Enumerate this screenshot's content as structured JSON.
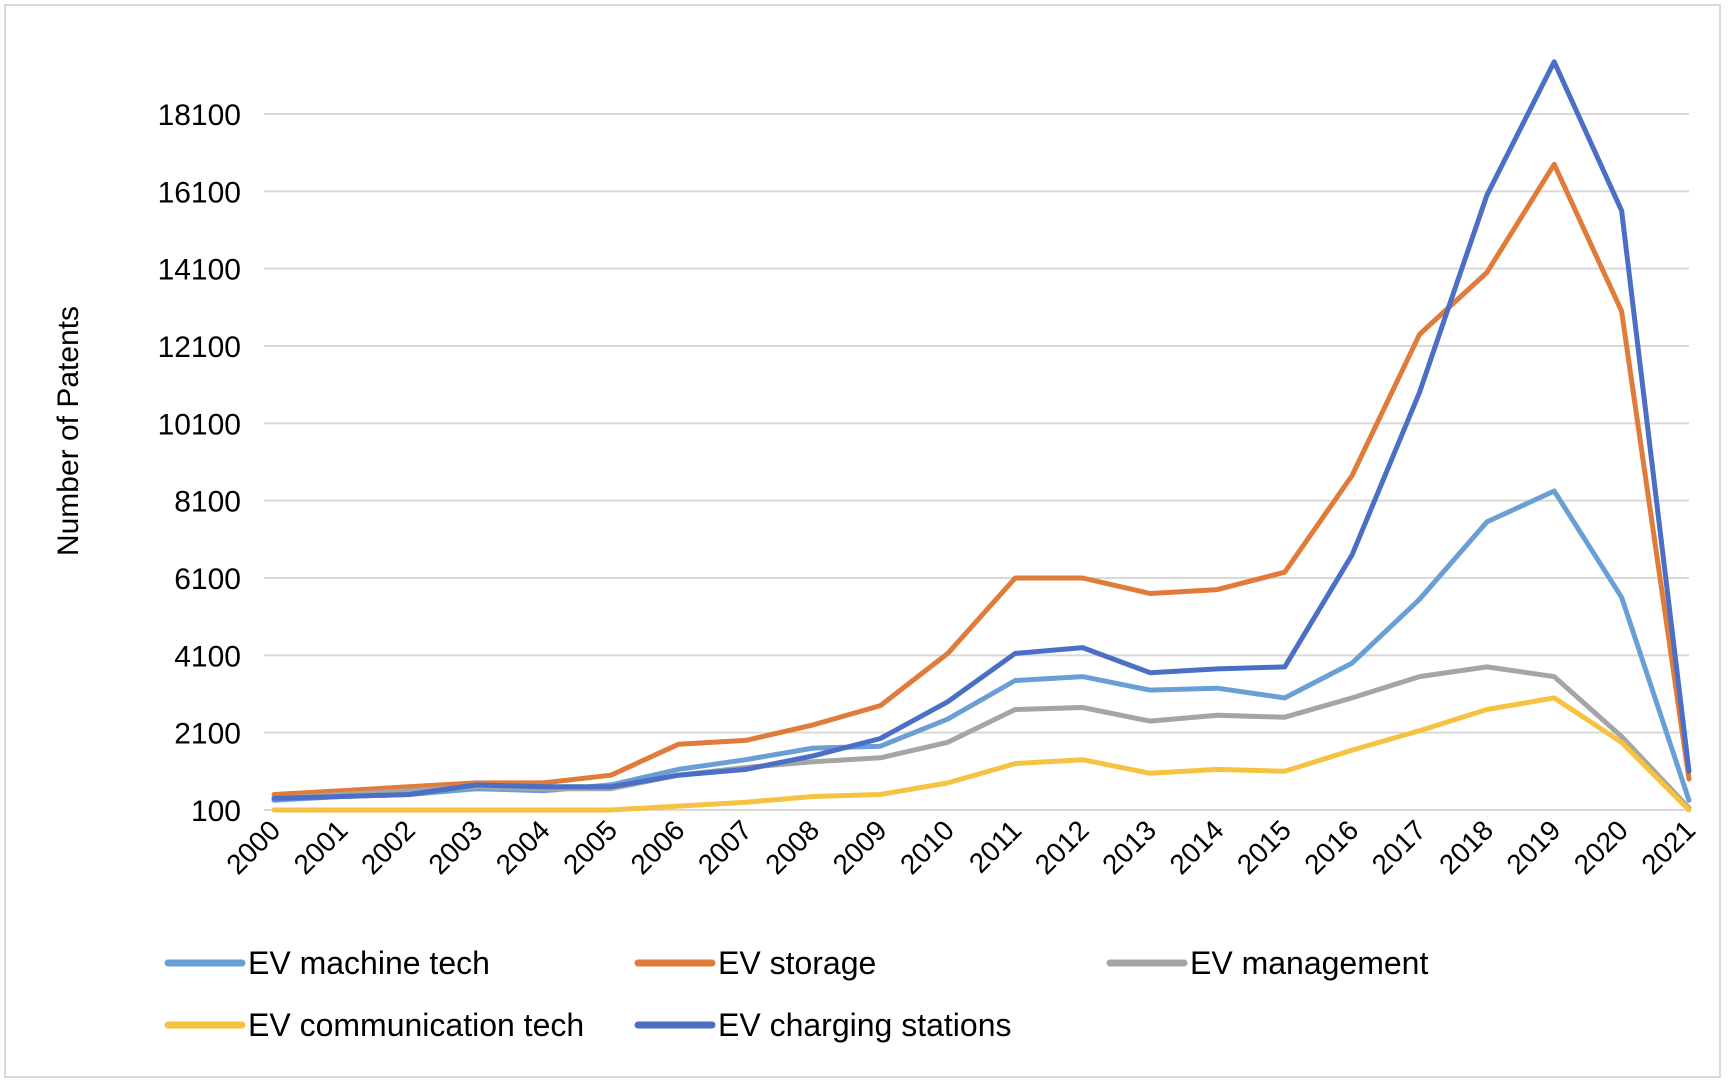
{
  "chart_data": {
    "type": "line",
    "title": "",
    "xlabel": "",
    "ylabel": "Number of Patents",
    "x": [
      "2000",
      "2001",
      "2002",
      "2003",
      "2004",
      "2005",
      "2006",
      "2007",
      "2008",
      "2009",
      "2010",
      "2011",
      "2012",
      "2013",
      "2014",
      "2015",
      "2016",
      "2017",
      "2018",
      "2019",
      "2020",
      "2021"
    ],
    "yticks": [
      "100",
      "2100",
      "4100",
      "6100",
      "8100",
      "10100",
      "12100",
      "14100",
      "16100",
      "18100"
    ],
    "ylim": [
      100,
      19600
    ],
    "grid": true,
    "legend_position": "bottom",
    "series": [
      {
        "name": "EV machine tech",
        "color": "#6a9fd6",
        "values": [
          350,
          450,
          500,
          650,
          600,
          750,
          1150,
          1400,
          1700,
          1750,
          2450,
          3450,
          3550,
          3200,
          3250,
          3000,
          3900,
          5550,
          7550,
          8350,
          5600,
          350
        ]
      },
      {
        "name": "EV storage",
        "color": "#e07b39",
        "values": [
          500,
          600,
          700,
          800,
          800,
          1000,
          1800,
          1900,
          2300,
          2800,
          4150,
          6100,
          6100,
          5700,
          5800,
          6250,
          8750,
          12400,
          14000,
          16800,
          13000,
          900
        ]
      },
      {
        "name": "EV management",
        "color": "#a5a5a5",
        "values": [
          400,
          500,
          600,
          700,
          650,
          650,
          1000,
          1200,
          1350,
          1450,
          1850,
          2700,
          2750,
          2400,
          2550,
          2500,
          3000,
          3550,
          3800,
          3550,
          2000,
          150
        ]
      },
      {
        "name": "EV communication tech",
        "color": "#f5c242",
        "values": [
          100,
          100,
          100,
          100,
          100,
          100,
          200,
          300,
          450,
          500,
          800,
          1300,
          1400,
          1050,
          1150,
          1100,
          1650,
          2150,
          2700,
          3000,
          1850,
          100
        ]
      },
      {
        "name": "EV charging stations",
        "color": "#4a6fc4",
        "values": [
          400,
          450,
          500,
          750,
          700,
          700,
          1000,
          1150,
          1500,
          1950,
          2900,
          4150,
          4300,
          3650,
          3750,
          3800,
          6700,
          10900,
          16000,
          19450,
          15600,
          1100
        ]
      }
    ]
  }
}
